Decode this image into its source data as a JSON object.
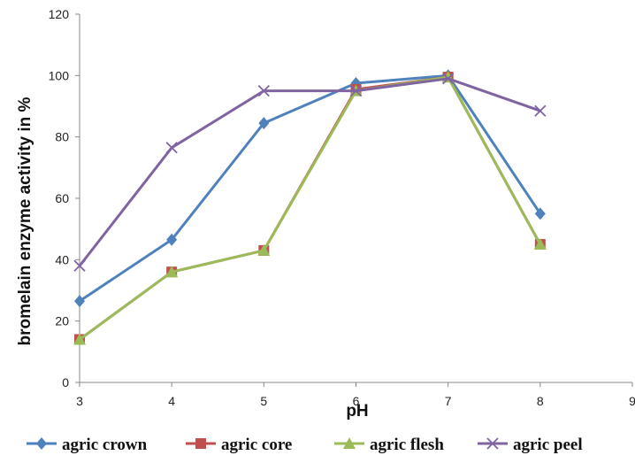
{
  "chart_data": {
    "type": "line",
    "xlabel": "pH",
    "ylabel": "bromelain enzyme activity in %",
    "x": [
      3,
      4,
      5,
      6,
      7,
      8
    ],
    "xlim": [
      3,
      9
    ],
    "ylim": [
      0,
      120
    ],
    "xticks": [
      3,
      4,
      5,
      6,
      7,
      8,
      9
    ],
    "yticks": [
      0,
      20,
      40,
      60,
      80,
      100,
      120
    ],
    "grid": false,
    "legend_position": "bottom",
    "series": [
      {
        "name": "agric crown",
        "color": "#4F81BD",
        "marker": "diamond",
        "values": [
          26.5,
          46.5,
          84.5,
          97.5,
          100,
          55
        ]
      },
      {
        "name": "agric core",
        "color": "#C0504D",
        "marker": "square",
        "values": [
          14,
          36,
          43,
          95.5,
          99.5,
          45
        ]
      },
      {
        "name": "agric flesh",
        "color": "#9BBB59",
        "marker": "triangle",
        "values": [
          14,
          36,
          43,
          95,
          99.5,
          45
        ]
      },
      {
        "name": "agric peel",
        "color": "#8064A2",
        "marker": "x",
        "values": [
          38,
          76.5,
          95,
          95,
          99,
          88.5
        ]
      }
    ]
  }
}
